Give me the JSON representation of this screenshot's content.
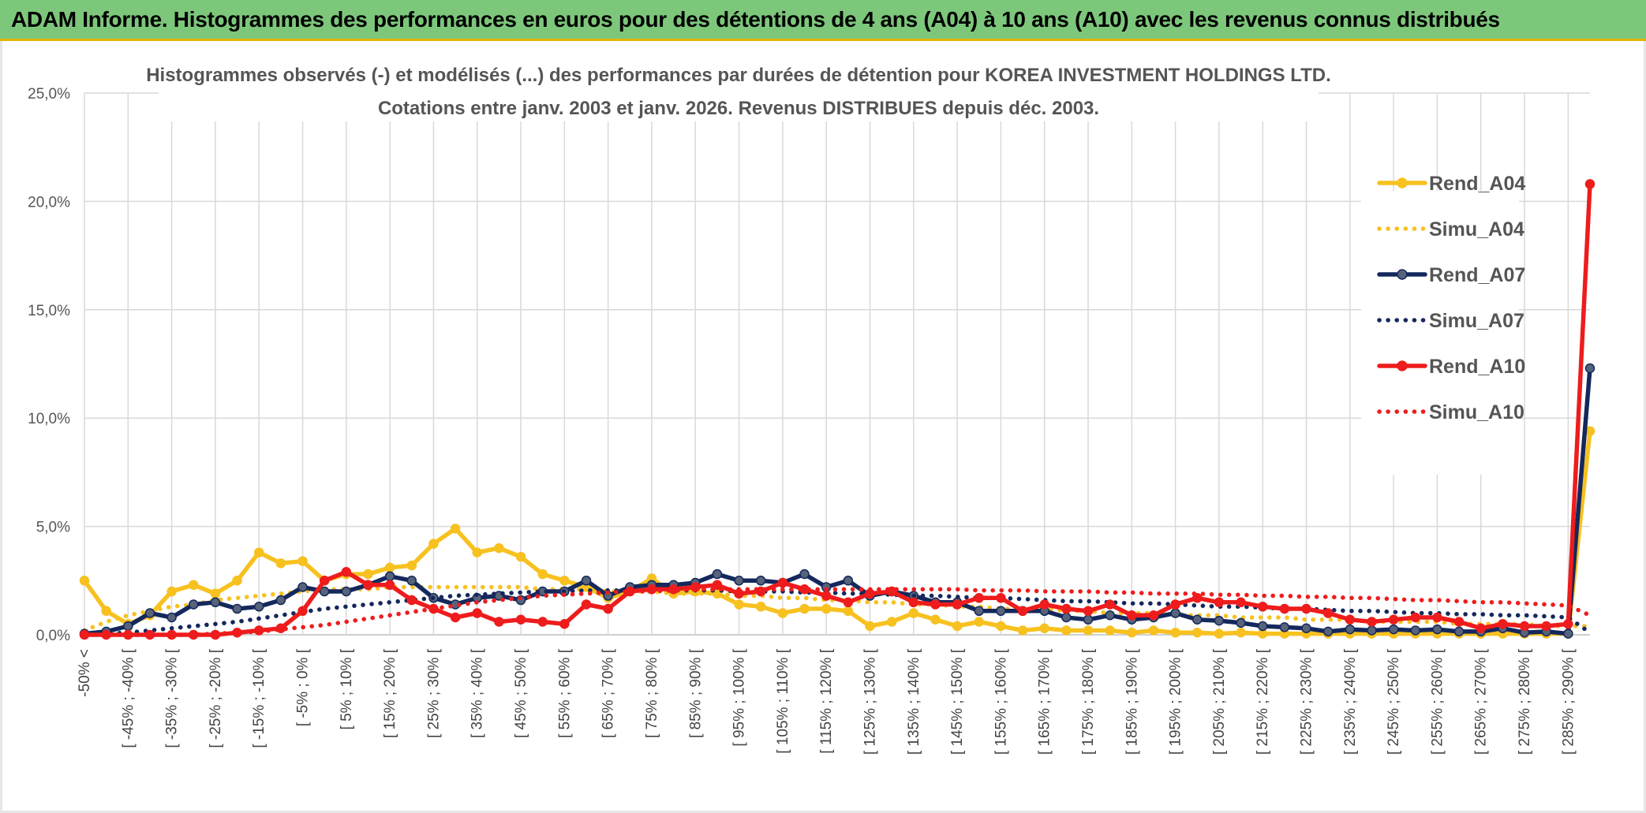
{
  "banner": {
    "title": "ADAM Informe. Histogrammes des performances en euros pour des détentions de 4 ans (A04) à 10 ans (A10) avec les revenus connus distribués"
  },
  "chart_data": {
    "type": "line",
    "title_line1": "Histogrammes observés (-) et modélisés (...) des performances par durées de détention pour KOREA INVESTMENT HOLDINGS LTD.",
    "title_line2": "Cotations entre janv. 2003 et janv. 2026. Revenus DISTRIBUES depuis déc. 2003.",
    "ylim": [
      0,
      25
    ],
    "yticks": [
      "0,0%",
      "5,0%",
      "10,0%",
      "15,0%",
      "20,0%",
      "25,0%"
    ],
    "ytick_values": [
      0,
      5,
      10,
      15,
      20,
      25
    ],
    "xtick_labels": [
      "-50% <",
      "[ -45% ; -40% [",
      "[ -35% ; -30% [",
      "[ -25% ; -20% [",
      "[ -15% ; -10% [",
      "[ -5% ; 0% [",
      "[ 5% ; 10% [",
      "[ 15% ; 20% [",
      "[ 25% ; 30% [",
      "[ 35% ; 40% [",
      "[ 45% ; 50% [",
      "[ 55% ; 60% [",
      "[ 65% ; 70% [",
      "[ 75% ; 80% [",
      "[ 85% ; 90% [",
      "[ 95% ; 100% [",
      "[ 105% ; 110% [",
      "[ 115% ; 120% [",
      "[ 125% ; 130% [",
      "[ 135% ; 140% [",
      "[ 145% ; 150% [",
      "[ 155% ; 160% [",
      "[ 165% ; 170% [",
      "[ 175% ; 180% [",
      "[ 185% ; 190% [",
      "[ 195% ; 200% [",
      "[ 205% ; 210% [",
      "[ 215% ; 220% [",
      "[ 225% ; 230% [",
      "[ 235% ; 240% [",
      "[ 245% ; 250% [",
      "[ 255% ; 260% [",
      "[ 265% ; 270% [",
      "[ 275% ; 280% [",
      "[ 285% ; 290% ["
    ],
    "n_points": 70,
    "legend_position": "right",
    "series": [
      {
        "name": "Rend_A04",
        "style": "solid",
        "color": "#f7c11f",
        "values": [
          2.5,
          1.1,
          0.5,
          0.9,
          2.0,
          2.3,
          1.9,
          2.5,
          3.8,
          3.3,
          3.4,
          2.5,
          2.8,
          2.8,
          3.1,
          3.2,
          4.2,
          4.9,
          3.8,
          4.0,
          3.6,
          2.8,
          2.5,
          2.2,
          1.7,
          2.0,
          2.6,
          1.9,
          2.0,
          1.9,
          1.4,
          1.3,
          1.0,
          1.2,
          1.2,
          1.1,
          0.4,
          0.6,
          1.0,
          0.7,
          0.4,
          0.6,
          0.4,
          0.2,
          0.3,
          0.2,
          0.2,
          0.2,
          0.1,
          0.2,
          0.1,
          0.1,
          0.05,
          0.1,
          0.05,
          0.05,
          0.05,
          0.05,
          0.05,
          0.05,
          0.05,
          0.05,
          0.05,
          0.05,
          0.05,
          0.05,
          0.05,
          0.05,
          0.05,
          9.4
        ]
      },
      {
        "name": "Simu_A04",
        "style": "dotted",
        "color": "#f7c11f",
        "values": [
          0.2,
          0.6,
          0.9,
          1.1,
          1.3,
          1.4,
          1.6,
          1.7,
          1.8,
          1.9,
          2.0,
          2.1,
          2.1,
          2.1,
          2.2,
          2.2,
          2.2,
          2.2,
          2.2,
          2.2,
          2.2,
          2.1,
          2.1,
          2.1,
          2.0,
          2.0,
          2.0,
          1.9,
          1.9,
          1.9,
          1.8,
          1.8,
          1.7,
          1.7,
          1.6,
          1.6,
          1.5,
          1.5,
          1.4,
          1.4,
          1.3,
          1.3,
          1.2,
          1.2,
          1.2,
          1.1,
          1.1,
          1.0,
          1.0,
          1.0,
          0.9,
          0.9,
          0.9,
          0.8,
          0.8,
          0.8,
          0.7,
          0.7,
          0.7,
          0.6,
          0.6,
          0.6,
          0.6,
          0.5,
          0.5,
          0.5,
          0.5,
          0.4,
          0.4,
          0.4
        ]
      },
      {
        "name": "Rend_A07",
        "style": "solid",
        "color": "#14285c",
        "values": [
          0.05,
          0.15,
          0.4,
          1.0,
          0.8,
          1.4,
          1.5,
          1.2,
          1.3,
          1.6,
          2.2,
          2.0,
          2.0,
          2.3,
          2.7,
          2.5,
          1.7,
          1.4,
          1.7,
          1.8,
          1.6,
          2.0,
          2.0,
          2.5,
          1.8,
          2.2,
          2.3,
          2.3,
          2.4,
          2.8,
          2.5,
          2.5,
          2.4,
          2.8,
          2.2,
          2.5,
          1.8,
          2.0,
          1.8,
          1.5,
          1.5,
          1.1,
          1.1,
          1.1,
          1.1,
          0.8,
          0.7,
          0.9,
          0.7,
          0.8,
          1.0,
          0.7,
          0.65,
          0.55,
          0.4,
          0.35,
          0.3,
          0.15,
          0.25,
          0.2,
          0.25,
          0.2,
          0.25,
          0.15,
          0.15,
          0.3,
          0.1,
          0.15,
          0.05,
          12.3
        ]
      },
      {
        "name": "Simu_A07",
        "style": "dotted",
        "color": "#14285c",
        "values": [
          0.0,
          0.05,
          0.1,
          0.2,
          0.3,
          0.4,
          0.5,
          0.6,
          0.75,
          0.9,
          1.05,
          1.2,
          1.3,
          1.4,
          1.5,
          1.6,
          1.7,
          1.8,
          1.85,
          1.9,
          1.95,
          2.0,
          2.0,
          2.05,
          2.05,
          2.05,
          2.05,
          2.05,
          2.05,
          2.05,
          2.0,
          2.0,
          2.0,
          1.95,
          1.95,
          1.9,
          1.9,
          1.85,
          1.8,
          1.8,
          1.75,
          1.7,
          1.7,
          1.65,
          1.6,
          1.55,
          1.55,
          1.5,
          1.45,
          1.45,
          1.4,
          1.35,
          1.3,
          1.3,
          1.25,
          1.2,
          1.2,
          1.15,
          1.1,
          1.1,
          1.05,
          1.0,
          1.0,
          0.95,
          0.95,
          0.9,
          0.9,
          0.85,
          0.8,
          0.1
        ]
      },
      {
        "name": "Rend_A10",
        "style": "solid",
        "color": "#ee1c1c",
        "values": [
          0.0,
          0.0,
          0.0,
          0.0,
          0.0,
          0.0,
          0.0,
          0.1,
          0.2,
          0.3,
          1.1,
          2.5,
          2.9,
          2.3,
          2.3,
          1.6,
          1.2,
          0.8,
          1.0,
          0.6,
          0.7,
          0.6,
          0.5,
          1.4,
          1.2,
          2.0,
          2.1,
          2.1,
          2.2,
          2.3,
          1.9,
          2.0,
          2.4,
          2.1,
          1.8,
          1.5,
          1.9,
          2.0,
          1.5,
          1.4,
          1.4,
          1.7,
          1.7,
          1.1,
          1.4,
          1.2,
          1.1,
          1.4,
          0.9,
          0.9,
          1.4,
          1.7,
          1.5,
          1.5,
          1.3,
          1.2,
          1.2,
          1.0,
          0.7,
          0.6,
          0.7,
          0.8,
          0.8,
          0.6,
          0.3,
          0.5,
          0.4,
          0.4,
          0.5,
          20.8
        ]
      },
      {
        "name": "Simu_A10",
        "style": "dotted",
        "color": "#ee1c1c",
        "values": [
          0.0,
          0.0,
          0.0,
          0.0,
          0.0,
          0.0,
          0.05,
          0.1,
          0.15,
          0.25,
          0.35,
          0.45,
          0.6,
          0.75,
          0.9,
          1.05,
          1.2,
          1.35,
          1.5,
          1.6,
          1.7,
          1.8,
          1.85,
          1.9,
          1.95,
          2.0,
          2.0,
          2.05,
          2.1,
          2.1,
          2.1,
          2.1,
          2.1,
          2.1,
          2.1,
          2.1,
          2.1,
          2.1,
          2.1,
          2.1,
          2.1,
          2.05,
          2.05,
          2.05,
          2.0,
          2.0,
          2.0,
          1.95,
          1.95,
          1.9,
          1.9,
          1.9,
          1.85,
          1.85,
          1.8,
          1.8,
          1.75,
          1.75,
          1.7,
          1.7,
          1.65,
          1.6,
          1.6,
          1.55,
          1.5,
          1.5,
          1.45,
          1.4,
          1.35,
          0.9
        ]
      }
    ]
  }
}
